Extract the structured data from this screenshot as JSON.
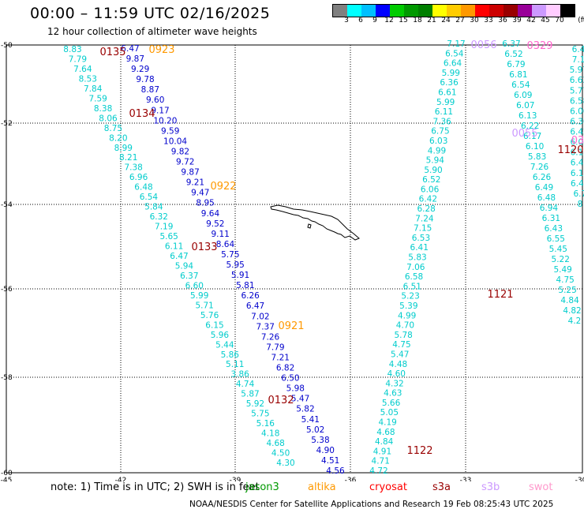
{
  "header": {
    "title": "00:00 – 11:59 UTC 02/16/2025",
    "subtitle": "12 hour collection of altimeter wave heights"
  },
  "color_scale": {
    "unit": "(ft)",
    "labels": [
      "3",
      "6",
      "9",
      "12",
      "15",
      "18",
      "21",
      "24",
      "27",
      "30",
      "33",
      "36",
      "39",
      "42",
      "45",
      "70"
    ],
    "colors": [
      "#808080",
      "#00ffff",
      "#00bfff",
      "#0000ff",
      "#00cc00",
      "#009900",
      "#007f00",
      "#ffff00",
      "#ffcc00",
      "#ff9900",
      "#ff0000",
      "#cc0000",
      "#990000",
      "#990099",
      "#cc99ff",
      "#ffccff",
      "#000000"
    ]
  },
  "axes": {
    "lat_labels": [
      "-50",
      "-52",
      "-54",
      "-56",
      "-58",
      "-60"
    ],
    "lon_labels": [
      "-45",
      "-42",
      "-39",
      "-36",
      "-33",
      "-30"
    ]
  },
  "passes": [
    {
      "label": "0135",
      "color": "#990000"
    },
    {
      "label": "0923",
      "color": "#ff9900"
    },
    {
      "label": "0134",
      "color": "#990000"
    },
    {
      "label": "0922",
      "color": "#ff9900"
    },
    {
      "label": "0133",
      "color": "#990000"
    },
    {
      "label": "0921",
      "color": "#ff9900"
    },
    {
      "label": "0132",
      "color": "#990000"
    },
    {
      "label": "1122",
      "color": "#990000"
    },
    {
      "label": "1121",
      "color": "#990000"
    },
    {
      "label": "1120",
      "color": "#990000"
    },
    {
      "label": "0056",
      "color": "#cc99ff"
    },
    {
      "label": "0055",
      "color": "#cc99ff"
    },
    {
      "label": "0329",
      "color": "#ff66cc"
    },
    {
      "label": "03",
      "color": "#ff66cc"
    }
  ],
  "tracks": [
    {
      "name": "west-a",
      "color": "#00cccc",
      "values": [
        "8.83",
        "7.79",
        "7.64",
        "8.53",
        "7.84",
        "7.59",
        "8.38",
        "8.06",
        "8.75",
        "8.20",
        "8.99",
        "8.21",
        "7.38",
        "6.96",
        "6.48",
        "6.54",
        "5.84",
        "6.32",
        "7.19",
        "5.65",
        "6.11",
        "6.47",
        "5.94",
        "6.37",
        "6.60",
        "5.99",
        "5.71",
        "5.76",
        "6.15",
        "5.96",
        "5.44",
        "5.86",
        "5.11",
        "3.86",
        "4.74",
        "5.87",
        "5.92",
        "5.75",
        "5.16",
        "4.18",
        "4.68",
        "4.50",
        "4.30"
      ]
    },
    {
      "name": "west-b",
      "color": "#0000cc",
      "values": [
        "6.47",
        "9.87",
        "9.29",
        "9.78",
        "8.87",
        "9.60",
        "9.17",
        "10.20",
        "9.59",
        "10.04",
        "9.82",
        "9.72",
        "9.87",
        "9.21",
        "9.47",
        "8.95",
        "9.64",
        "9.52",
        "9.11",
        "8.64",
        "5.75",
        "5.95",
        "5.91",
        "5.81",
        "6.26",
        "6.47",
        "7.02",
        "7.37",
        "7.26",
        "7.79",
        "7.21",
        "6.82",
        "6.50",
        "5.98",
        "5.47",
        "5.82",
        "5.41",
        "5.02",
        "5.38",
        "4.90",
        "4.51",
        "4.56"
      ]
    },
    {
      "name": "east-a",
      "color": "#00cccc",
      "values": [
        "7.17",
        "6.54",
        "6.64",
        "5.99",
        "6.36",
        "6.61",
        "5.99",
        "6.11",
        "7.36",
        "6.75",
        "6.03",
        "4.99",
        "5.94",
        "5.90",
        "6.52",
        "6.06",
        "6.42",
        "6.28",
        "7.24",
        "7.15",
        "6.53",
        "6.41",
        "5.83",
        "7.06",
        "6.58",
        "6.51",
        "5.23",
        "5.39",
        "4.99",
        "4.70",
        "5.78",
        "4.75",
        "5.47",
        "4.48",
        "4.60",
        "4.32",
        "4.63",
        "5.66",
        "5.05",
        "4.19",
        "4.68",
        "4.84",
        "4.91",
        "4.71",
        "4.72"
      ]
    },
    {
      "name": "east-b",
      "color": "#00cccc",
      "values": [
        "6.37",
        "6.52",
        "6.79",
        "6.81",
        "6.54",
        "6.09",
        "6.07",
        "6.13",
        "6.22",
        "6.17",
        "6.10",
        "5.83",
        "7.26",
        "6.26",
        "6.49",
        "6.48",
        "6.94",
        "6.31",
        "6.43",
        "6.55",
        "5.45",
        "5.22",
        "5.49",
        "4.75",
        "5.25",
        "4.84",
        "4.82",
        "4.2"
      ]
    },
    {
      "name": "east-c",
      "color": "#00cccc",
      "values": [
        "6.4",
        "7.1",
        "5.97",
        "6.63",
        "5.77",
        "6.58",
        "6.06",
        "6.36",
        "6.42",
        "6.04",
        "6.17",
        "6.47",
        "6.15",
        "6.42",
        "6.7",
        "8"
      ]
    }
  ],
  "notes": {
    "note_prefix": "note:  1) Time is in UTC; 2) SWH is in feet",
    "legend": [
      {
        "label": "jason3",
        "color": "#009900"
      },
      {
        "label": "altika",
        "color": "#ff9900"
      },
      {
        "label": "cryosat",
        "color": "#ff0000"
      },
      {
        "label": "s3a",
        "color": "#990000"
      },
      {
        "label": "s3b",
        "color": "#cc99ff"
      },
      {
        "label": "swot",
        "color": "#ff99cc"
      }
    ]
  },
  "footer": "NOAA/NESDIS Center for Satellite Applications and Research    19 Feb 08:25:43 UTC 2025"
}
